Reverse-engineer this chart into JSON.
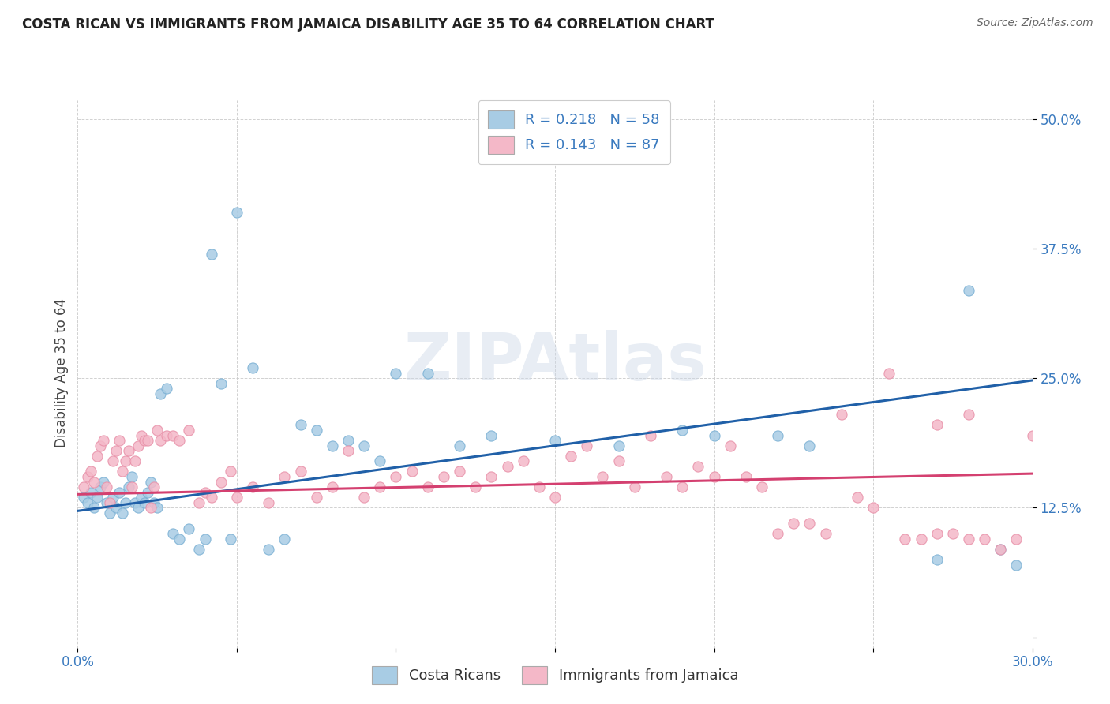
{
  "title": "COSTA RICAN VS IMMIGRANTS FROM JAMAICA DISABILITY AGE 35 TO 64 CORRELATION CHART",
  "source": "Source: ZipAtlas.com",
  "ylabel": "Disability Age 35 to 64",
  "x_min": 0.0,
  "x_max": 0.3,
  "y_min": -0.01,
  "y_max": 0.52,
  "y_ticks": [
    0.0,
    0.125,
    0.25,
    0.375,
    0.5
  ],
  "y_tick_labels": [
    "",
    "12.5%",
    "25.0%",
    "37.5%",
    "50.0%"
  ],
  "x_ticks": [
    0.0,
    0.05,
    0.1,
    0.15,
    0.2,
    0.25,
    0.3
  ],
  "x_tick_labels": [
    "0.0%",
    "",
    "",
    "",
    "",
    "",
    "30.0%"
  ],
  "legend_r1": "R = 0.218",
  "legend_n1": "N = 58",
  "legend_r2": "R = 0.143",
  "legend_n2": "N = 87",
  "color_blue": "#a8cce4",
  "color_blue_edge": "#7ab0d4",
  "color_pink": "#f4b8c8",
  "color_pink_edge": "#e890a8",
  "color_blue_text": "#3a7abf",
  "line_blue": "#2060a8",
  "line_pink": "#d44070",
  "watermark": "ZIPAtlas",
  "legend_label_blue": "Costa Ricans",
  "legend_label_pink": "Immigrants from Jamaica",
  "blue_scatter_x": [
    0.002,
    0.003,
    0.004,
    0.005,
    0.006,
    0.007,
    0.008,
    0.009,
    0.01,
    0.011,
    0.012,
    0.013,
    0.014,
    0.015,
    0.016,
    0.017,
    0.018,
    0.019,
    0.02,
    0.021,
    0.022,
    0.023,
    0.024,
    0.025,
    0.026,
    0.028,
    0.03,
    0.032,
    0.035,
    0.038,
    0.04,
    0.042,
    0.045,
    0.048,
    0.05,
    0.055,
    0.06,
    0.065,
    0.07,
    0.075,
    0.08,
    0.085,
    0.09,
    0.095,
    0.1,
    0.11,
    0.12,
    0.13,
    0.15,
    0.17,
    0.19,
    0.2,
    0.22,
    0.23,
    0.27,
    0.28,
    0.29,
    0.295
  ],
  "blue_scatter_y": [
    0.135,
    0.13,
    0.14,
    0.125,
    0.135,
    0.145,
    0.15,
    0.13,
    0.12,
    0.135,
    0.125,
    0.14,
    0.12,
    0.13,
    0.145,
    0.155,
    0.13,
    0.125,
    0.135,
    0.13,
    0.14,
    0.15,
    0.13,
    0.125,
    0.235,
    0.24,
    0.1,
    0.095,
    0.105,
    0.085,
    0.095,
    0.37,
    0.245,
    0.095,
    0.41,
    0.26,
    0.085,
    0.095,
    0.205,
    0.2,
    0.185,
    0.19,
    0.185,
    0.17,
    0.255,
    0.255,
    0.185,
    0.195,
    0.19,
    0.185,
    0.2,
    0.195,
    0.195,
    0.185,
    0.075,
    0.335,
    0.085,
    0.07
  ],
  "pink_scatter_x": [
    0.002,
    0.003,
    0.004,
    0.005,
    0.006,
    0.007,
    0.008,
    0.009,
    0.01,
    0.011,
    0.012,
    0.013,
    0.014,
    0.015,
    0.016,
    0.017,
    0.018,
    0.019,
    0.02,
    0.021,
    0.022,
    0.023,
    0.024,
    0.025,
    0.026,
    0.028,
    0.03,
    0.032,
    0.035,
    0.038,
    0.04,
    0.042,
    0.045,
    0.048,
    0.05,
    0.055,
    0.06,
    0.065,
    0.07,
    0.075,
    0.08,
    0.085,
    0.09,
    0.095,
    0.1,
    0.105,
    0.11,
    0.115,
    0.12,
    0.125,
    0.13,
    0.135,
    0.14,
    0.145,
    0.15,
    0.155,
    0.16,
    0.165,
    0.17,
    0.175,
    0.18,
    0.185,
    0.19,
    0.195,
    0.2,
    0.205,
    0.21,
    0.215,
    0.22,
    0.225,
    0.23,
    0.235,
    0.24,
    0.245,
    0.25,
    0.255,
    0.26,
    0.265,
    0.27,
    0.275,
    0.28,
    0.285,
    0.29,
    0.295,
    0.3,
    0.27,
    0.28
  ],
  "pink_scatter_y": [
    0.145,
    0.155,
    0.16,
    0.15,
    0.175,
    0.185,
    0.19,
    0.145,
    0.13,
    0.17,
    0.18,
    0.19,
    0.16,
    0.17,
    0.18,
    0.145,
    0.17,
    0.185,
    0.195,
    0.19,
    0.19,
    0.125,
    0.145,
    0.2,
    0.19,
    0.195,
    0.195,
    0.19,
    0.2,
    0.13,
    0.14,
    0.135,
    0.15,
    0.16,
    0.135,
    0.145,
    0.13,
    0.155,
    0.16,
    0.135,
    0.145,
    0.18,
    0.135,
    0.145,
    0.155,
    0.16,
    0.145,
    0.155,
    0.16,
    0.145,
    0.155,
    0.165,
    0.17,
    0.145,
    0.135,
    0.175,
    0.185,
    0.155,
    0.17,
    0.145,
    0.195,
    0.155,
    0.145,
    0.165,
    0.155,
    0.185,
    0.155,
    0.145,
    0.1,
    0.11,
    0.11,
    0.1,
    0.215,
    0.135,
    0.125,
    0.255,
    0.095,
    0.095,
    0.1,
    0.1,
    0.095,
    0.095,
    0.085,
    0.095,
    0.195,
    0.205,
    0.215
  ],
  "blue_line_x": [
    0.0,
    0.3
  ],
  "blue_line_y": [
    0.122,
    0.248
  ],
  "pink_line_x": [
    0.0,
    0.3
  ],
  "pink_line_y": [
    0.138,
    0.158
  ]
}
